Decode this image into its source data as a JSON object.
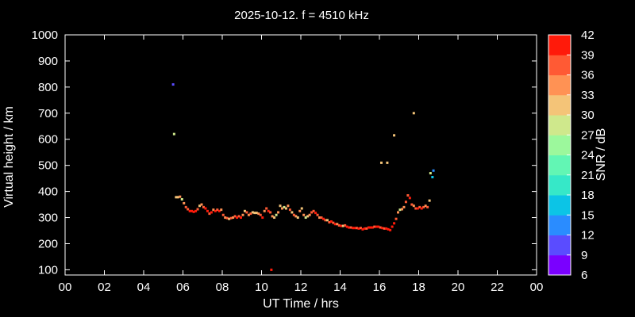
{
  "chart_data": {
    "type": "scatter",
    "title": "2025-10-12. f = 4510 kHz",
    "xlabel": "UT Time / hrs",
    "ylabel": "Virtual height / km",
    "xlim": [
      0,
      24
    ],
    "ylim": [
      80,
      1000
    ],
    "xticks": [
      "00",
      "02",
      "04",
      "06",
      "08",
      "10",
      "12",
      "14",
      "16",
      "18",
      "20",
      "22",
      "00"
    ],
    "yticks": [
      100,
      200,
      300,
      400,
      500,
      600,
      700,
      800,
      900,
      1000
    ],
    "grid": false,
    "colorbar": {
      "label": "SNR / dB",
      "range": [
        6,
        42
      ],
      "ticks": [
        6,
        9,
        12,
        15,
        18,
        21,
        24,
        27,
        30,
        33,
        36,
        39,
        42
      ],
      "colors": [
        "#7a00ff",
        "#5a4cff",
        "#2a8cff",
        "#0cc4e6",
        "#36e8c8",
        "#62f6b4",
        "#9cf89c",
        "#cfe88c",
        "#f4c478",
        "#ff9254",
        "#ff5a34",
        "#ff1a0a"
      ]
    },
    "series": [
      {
        "points": [
          [
            5.5,
            810,
            9
          ],
          [
            5.55,
            620,
            27
          ],
          [
            5.65,
            378,
            30
          ],
          [
            5.75,
            378,
            30
          ],
          [
            5.85,
            380,
            33
          ],
          [
            5.95,
            370,
            27
          ],
          [
            6.05,
            355,
            33
          ],
          [
            6.15,
            340,
            36
          ],
          [
            6.25,
            332,
            36
          ],
          [
            6.35,
            325,
            39
          ],
          [
            6.45,
            325,
            39
          ],
          [
            6.55,
            322,
            39
          ],
          [
            6.65,
            325,
            39
          ],
          [
            6.75,
            332,
            36
          ],
          [
            6.85,
            345,
            30
          ],
          [
            6.95,
            350,
            33
          ],
          [
            7.05,
            340,
            36
          ],
          [
            7.15,
            335,
            39
          ],
          [
            7.25,
            325,
            39
          ],
          [
            7.35,
            315,
            36
          ],
          [
            7.45,
            320,
            39
          ],
          [
            7.55,
            330,
            33
          ],
          [
            7.65,
            325,
            39
          ],
          [
            7.75,
            330,
            36
          ],
          [
            7.85,
            325,
            39
          ],
          [
            7.95,
            330,
            33
          ],
          [
            8.05,
            310,
            36
          ],
          [
            8.15,
            300,
            33
          ],
          [
            8.25,
            298,
            36
          ],
          [
            8.35,
            295,
            30
          ],
          [
            8.45,
            298,
            36
          ],
          [
            8.55,
            300,
            33
          ],
          [
            8.65,
            305,
            36
          ],
          [
            8.75,
            300,
            39
          ],
          [
            8.85,
            305,
            36
          ],
          [
            8.95,
            300,
            39
          ],
          [
            9.05,
            310,
            33
          ],
          [
            9.15,
            325,
            30
          ],
          [
            9.25,
            320,
            36
          ],
          [
            9.35,
            310,
            33
          ],
          [
            9.45,
            315,
            36
          ],
          [
            9.55,
            320,
            30
          ],
          [
            9.65,
            318,
            30
          ],
          [
            9.75,
            318,
            30
          ],
          [
            9.85,
            315,
            33
          ],
          [
            9.95,
            310,
            36
          ],
          [
            10.05,
            300,
            39
          ],
          [
            10.15,
            325,
            33
          ],
          [
            10.25,
            335,
            36
          ],
          [
            10.35,
            325,
            39
          ],
          [
            10.45,
            320,
            36
          ],
          [
            10.55,
            305,
            33
          ],
          [
            10.65,
            300,
            30
          ],
          [
            10.75,
            310,
            27
          ],
          [
            10.85,
            320,
            33
          ],
          [
            10.95,
            345,
            30
          ],
          [
            11.05,
            335,
            33
          ],
          [
            11.15,
            340,
            27
          ],
          [
            11.25,
            335,
            30
          ],
          [
            11.35,
            345,
            33
          ],
          [
            11.45,
            330,
            36
          ],
          [
            11.55,
            320,
            30
          ],
          [
            11.65,
            310,
            36
          ],
          [
            11.75,
            305,
            33
          ],
          [
            11.85,
            300,
            30
          ],
          [
            11.95,
            325,
            33
          ],
          [
            12.05,
            335,
            30
          ],
          [
            12.15,
            310,
            33
          ],
          [
            12.25,
            300,
            27
          ],
          [
            12.35,
            305,
            30
          ],
          [
            12.45,
            310,
            33
          ],
          [
            12.55,
            320,
            36
          ],
          [
            12.65,
            325,
            36
          ],
          [
            12.75,
            318,
            39
          ],
          [
            12.85,
            310,
            36
          ],
          [
            12.95,
            300,
            33
          ],
          [
            13.05,
            300,
            36
          ],
          [
            13.15,
            295,
            39
          ],
          [
            13.25,
            290,
            36
          ],
          [
            13.35,
            290,
            30
          ],
          [
            13.45,
            282,
            36
          ],
          [
            13.55,
            285,
            39
          ],
          [
            13.65,
            280,
            36
          ],
          [
            13.75,
            275,
            39
          ],
          [
            13.85,
            275,
            33
          ],
          [
            13.95,
            270,
            36
          ],
          [
            14.05,
            268,
            39
          ],
          [
            14.15,
            268,
            30
          ],
          [
            14.25,
            270,
            36
          ],
          [
            14.35,
            265,
            39
          ],
          [
            14.45,
            262,
            39
          ],
          [
            14.55,
            262,
            36
          ],
          [
            14.65,
            260,
            39
          ],
          [
            14.75,
            260,
            39
          ],
          [
            14.85,
            260,
            36
          ],
          [
            14.95,
            258,
            39
          ],
          [
            15.05,
            260,
            36
          ],
          [
            15.15,
            255,
            39
          ],
          [
            15.25,
            258,
            39
          ],
          [
            15.35,
            258,
            36
          ],
          [
            15.45,
            262,
            39
          ],
          [
            15.55,
            262,
            39
          ],
          [
            15.65,
            262,
            39
          ],
          [
            15.75,
            265,
            36
          ],
          [
            15.85,
            265,
            39
          ],
          [
            15.95,
            265,
            39
          ],
          [
            16.05,
            262,
            36
          ],
          [
            16.15,
            260,
            39
          ],
          [
            16.25,
            258,
            36
          ],
          [
            16.35,
            258,
            39
          ],
          [
            16.45,
            255,
            39
          ],
          [
            16.55,
            252,
            39
          ],
          [
            16.65,
            265,
            39
          ],
          [
            16.75,
            278,
            39
          ],
          [
            16.85,
            295,
            36
          ],
          [
            16.95,
            320,
            33
          ],
          [
            17.05,
            330,
            27
          ],
          [
            17.15,
            332,
            33
          ],
          [
            17.25,
            340,
            33
          ],
          [
            17.35,
            360,
            36
          ],
          [
            17.45,
            385,
            36
          ],
          [
            17.55,
            375,
            39
          ],
          [
            17.65,
            350,
            36
          ],
          [
            17.75,
            345,
            33
          ],
          [
            17.85,
            335,
            36
          ],
          [
            17.95,
            335,
            39
          ],
          [
            18.05,
            340,
            36
          ],
          [
            18.15,
            335,
            39
          ],
          [
            18.25,
            340,
            36
          ],
          [
            18.35,
            345,
            33
          ],
          [
            18.45,
            340,
            36
          ],
          [
            18.55,
            365,
            30
          ],
          [
            18.6,
            470,
            27
          ],
          [
            18.7,
            455,
            15
          ],
          [
            18.75,
            480,
            12
          ],
          [
            16.1,
            510,
            30
          ],
          [
            16.4,
            510,
            30
          ],
          [
            16.75,
            615,
            30
          ],
          [
            17.75,
            700,
            30
          ],
          [
            10.5,
            100,
            42
          ]
        ]
      }
    ]
  }
}
